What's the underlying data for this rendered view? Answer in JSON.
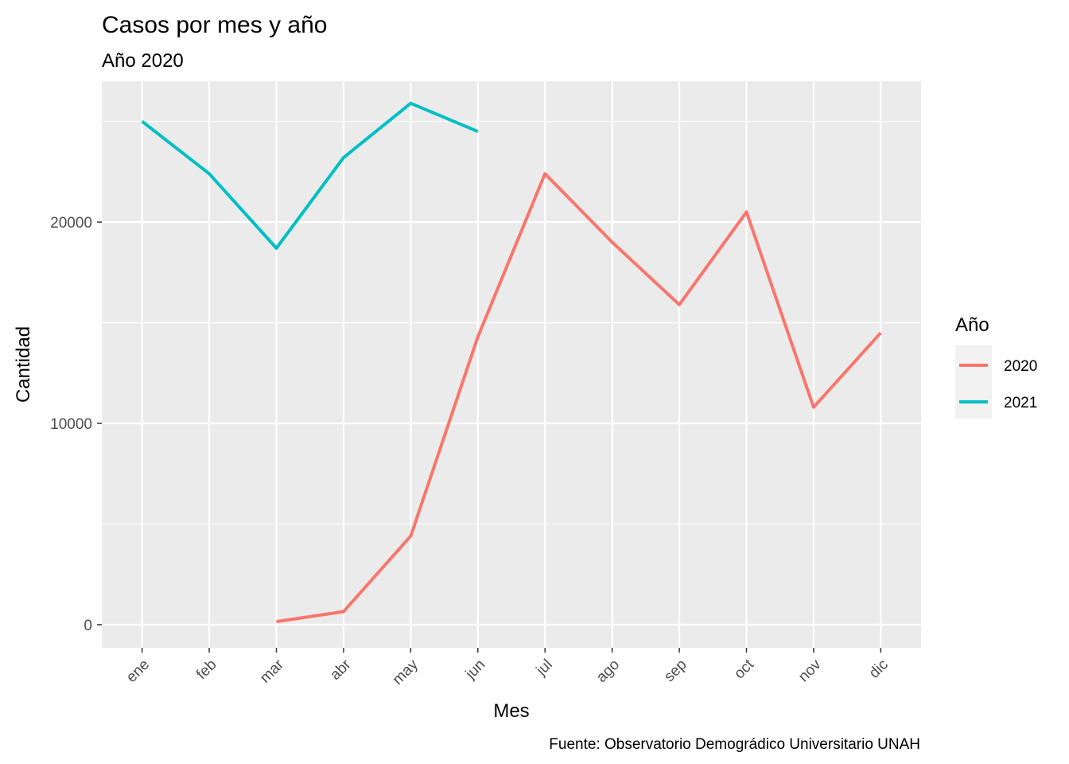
{
  "chart_data": {
    "type": "line",
    "title": "Casos por mes y año",
    "subtitle": "Año 2020",
    "xlabel": "Mes",
    "ylabel": "Cantidad",
    "caption": "Fuente: Observatorio Demográdico Universitario UNAH",
    "categories": [
      "ene",
      "feb",
      "mar",
      "abr",
      "may",
      "jun",
      "jul",
      "ago",
      "sep",
      "oct",
      "nov",
      "dic"
    ],
    "y_ticks": [
      0,
      10000,
      20000
    ],
    "y_tick_labels": [
      "0",
      "10000",
      "20000"
    ],
    "ylim": [
      -1150,
      27000
    ],
    "grid": true,
    "legend": {
      "title": "Año",
      "position": "right"
    },
    "series": [
      {
        "name": "2020",
        "color": "#F8766D",
        "values": [
          null,
          null,
          150,
          650,
          4400,
          14300,
          22400,
          19000,
          15900,
          20500,
          10800,
          14500
        ]
      },
      {
        "name": "2021",
        "color": "#00BFC4",
        "values": [
          25000,
          22400,
          18700,
          23200,
          25900,
          24500,
          null,
          null,
          null,
          null,
          null,
          null
        ]
      }
    ]
  }
}
